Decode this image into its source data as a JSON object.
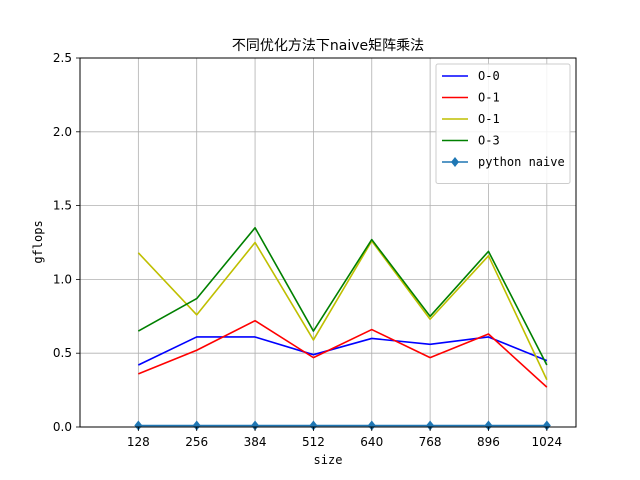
{
  "chart_data": {
    "type": "line",
    "title": "不同优化方法下naive矩阵乘法",
    "xlabel": "size",
    "ylabel": "gflops",
    "categories": [
      "128",
      "256",
      "384",
      "512",
      "640",
      "768",
      "896",
      "1024"
    ],
    "x": [
      128,
      256,
      384,
      512,
      640,
      768,
      896,
      1024
    ],
    "xlim": [
      0,
      1088
    ],
    "ylim": [
      0,
      2.5
    ],
    "yticks": [
      "0.0",
      "0.5",
      "1.0",
      "1.5",
      "2.0",
      "2.5"
    ],
    "grid": true,
    "legend_position": "top-right",
    "series": [
      {
        "name": "O-0",
        "color": "#0000ff",
        "marker": "none",
        "values": [
          0.42,
          0.61,
          0.61,
          0.49,
          0.6,
          0.56,
          0.61,
          0.45
        ]
      },
      {
        "name": "O-1",
        "color": "#ff0000",
        "marker": "none",
        "values": [
          0.36,
          0.52,
          0.72,
          0.47,
          0.66,
          0.47,
          0.63,
          0.27
        ]
      },
      {
        "name": "O-1",
        "color": "#bfbf00",
        "marker": "none",
        "values": [
          1.18,
          0.76,
          1.25,
          0.59,
          1.26,
          0.73,
          1.16,
          0.32
        ]
      },
      {
        "name": "O-3",
        "color": "#008000",
        "marker": "none",
        "values": [
          0.65,
          0.87,
          1.35,
          0.65,
          1.27,
          0.75,
          1.19,
          0.42
        ]
      },
      {
        "name": "python naive",
        "color": "#1f77b4",
        "marker": "diamond",
        "values": [
          0.01,
          0.01,
          0.01,
          0.01,
          0.01,
          0.01,
          0.01,
          0.01
        ]
      }
    ]
  }
}
